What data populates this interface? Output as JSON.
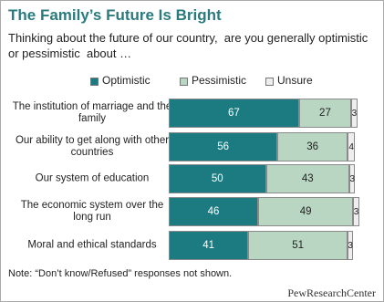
{
  "chart_data": {
    "type": "stacked-bar",
    "orientation": "horizontal",
    "title": "The Family’s Future Is Bright",
    "subtitle": "Thinking about the future of our country,  are you generally optimistic  or pessimistic  about …",
    "categories": [
      "The institution of marriage and the family",
      "Our ability to get along with other countries",
      "Our system of education",
      "The economic system over the long run",
      "Moral and ethical standards"
    ],
    "series": [
      {
        "name": "Optimistic",
        "color": "#1b7b80",
        "values": [
          67,
          56,
          50,
          46,
          41
        ]
      },
      {
        "name": "Pessimistic",
        "color": "#b9d6c2",
        "values": [
          27,
          36,
          43,
          49,
          51
        ]
      },
      {
        "name": "Unsure",
        "color": "#eeeeee",
        "values": [
          3,
          4,
          3,
          3,
          3
        ]
      }
    ],
    "xlim": [
      0,
      100
    ],
    "note": "Note: “Don’t know/Refused” responses not shown.",
    "source": "PewResearchCenter"
  }
}
